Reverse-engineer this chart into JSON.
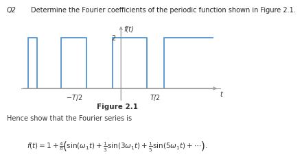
{
  "title_q": "Q2",
  "title_text": "Determine the Fourier coefficients of the periodic function shown in Figure 2.1.",
  "figure_label": "Figure 2.1",
  "hence_text": "Hence show that the Fourier series is",
  "ylabel": "f(t)",
  "xlabel": "t",
  "square_wave_color": "#5b9bd5",
  "axis_color": "#999999",
  "background_color": "#ffffff",
  "segs": [
    [
      [
        -2.7,
        0
      ],
      [
        -2.7,
        2
      ],
      [
        -2.45,
        2
      ],
      [
        -2.45,
        0
      ]
    ],
    [
      [
        -1.75,
        0
      ],
      [
        -1.75,
        2
      ],
      [
        -1.0,
        2
      ],
      [
        -1.0,
        0
      ]
    ],
    [
      [
        -0.25,
        0
      ],
      [
        -0.25,
        2
      ],
      [
        0.75,
        2
      ],
      [
        0.75,
        0
      ]
    ],
    [
      [
        1.25,
        0
      ],
      [
        1.25,
        2
      ],
      [
        2.7,
        2
      ]
    ]
  ],
  "xmin": -2.9,
  "xmax": 2.9,
  "ymin": -0.55,
  "ymax": 2.7,
  "neg_T2_x": -1.37,
  "pos_T2_x": 1.0,
  "ytick2_x": 0.0
}
